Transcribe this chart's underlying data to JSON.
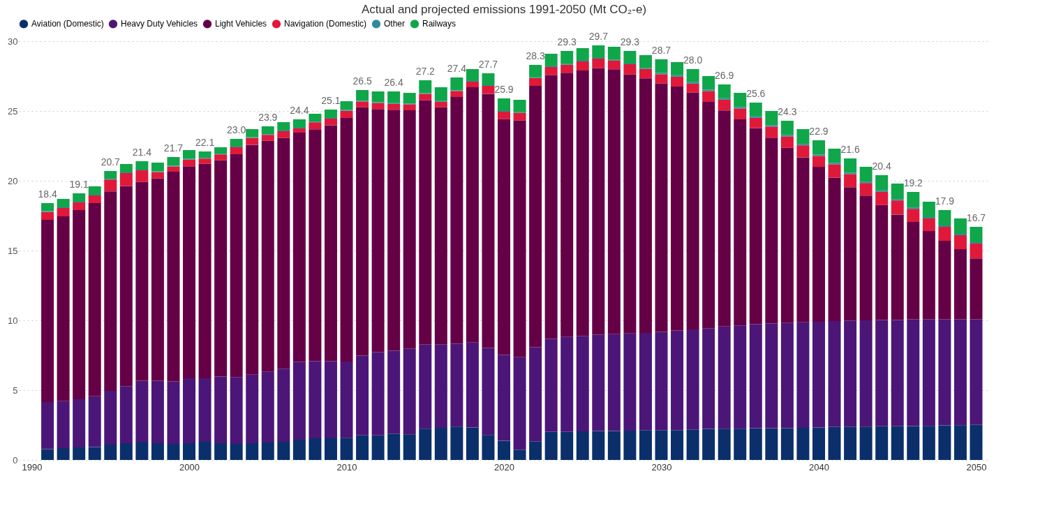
{
  "chart_data": {
    "type": "bar",
    "stacked": true,
    "title": "Actual and projected emissions 1991-2050 (Mt CO₂-e)",
    "x": [
      1991,
      1992,
      1993,
      1994,
      1995,
      1996,
      1997,
      1998,
      1999,
      2000,
      2001,
      2002,
      2003,
      2004,
      2005,
      2006,
      2007,
      2008,
      2009,
      2010,
      2011,
      2012,
      2013,
      2014,
      2015,
      2016,
      2017,
      2018,
      2019,
      2020,
      2021,
      2022,
      2023,
      2024,
      2025,
      2026,
      2027,
      2028,
      2029,
      2030,
      2031,
      2032,
      2033,
      2034,
      2035,
      2036,
      2037,
      2038,
      2039,
      2040,
      2041,
      2042,
      2043,
      2044,
      2045,
      2046,
      2047,
      2048,
      2049,
      2050
    ],
    "series": [
      {
        "name": "Aviation (Domestic)",
        "color": "#0b2f6b",
        "values": [
          0.77,
          0.85,
          0.9,
          0.92,
          1.1,
          1.2,
          1.3,
          1.2,
          1.15,
          1.2,
          1.3,
          1.2,
          1.15,
          1.2,
          1.25,
          1.3,
          1.45,
          1.55,
          1.55,
          1.59,
          1.76,
          1.76,
          1.88,
          1.84,
          2.24,
          2.3,
          2.39,
          2.32,
          1.79,
          1.37,
          0.73,
          1.33,
          2.01,
          2.01,
          2.05,
          2.07,
          2.07,
          2.1,
          2.13,
          2.13,
          2.13,
          2.18,
          2.22,
          2.24,
          2.24,
          2.27,
          2.27,
          2.27,
          2.3,
          2.32,
          2.36,
          2.36,
          2.39,
          2.41,
          2.41,
          2.42,
          2.44,
          2.47,
          2.49,
          2.53
        ]
      },
      {
        "name": "Heavy Duty Vehicles",
        "color": "#4b1678",
        "values": [
          3.38,
          3.36,
          3.45,
          3.64,
          3.85,
          4.09,
          4.37,
          4.47,
          4.48,
          4.65,
          4.55,
          4.77,
          4.79,
          4.91,
          5.06,
          5.24,
          5.58,
          5.53,
          5.53,
          5.46,
          5.71,
          5.97,
          5.94,
          6.15,
          6.05,
          5.99,
          5.94,
          6.09,
          6.23,
          6.16,
          6.63,
          6.74,
          6.66,
          6.8,
          6.84,
          6.91,
          6.94,
          6.96,
          6.97,
          7.05,
          7.14,
          7.17,
          7.22,
          7.32,
          7.4,
          7.46,
          7.51,
          7.54,
          7.56,
          7.58,
          7.59,
          7.62,
          7.61,
          7.62,
          7.62,
          7.65,
          7.63,
          7.61,
          7.59,
          7.55
        ]
      },
      {
        "name": "Light Vehicles",
        "color": "#650047",
        "values": [
          13.05,
          13.24,
          13.55,
          13.84,
          14.29,
          14.34,
          14.25,
          14.5,
          15.02,
          15.19,
          15.36,
          15.5,
          15.96,
          16.47,
          16.56,
          16.53,
          16.42,
          16.61,
          16.9,
          17.45,
          17.79,
          17.41,
          17.27,
          17.06,
          17.48,
          16.97,
          17.67,
          18.29,
          18.21,
          16.88,
          16.96,
          18.73,
          18.89,
          18.93,
          19.01,
          19.09,
          18.98,
          18.55,
          18.24,
          17.79,
          17.48,
          16.97,
          16.21,
          15.48,
          14.76,
          14.05,
          13.31,
          12.55,
          11.82,
          11.1,
          10.28,
          9.56,
          8.94,
          8.23,
          7.55,
          6.98,
          6.33,
          5.62,
          5.02,
          4.36
        ]
      },
      {
        "name": "Navigation (Domestic)",
        "color": "#e0193a",
        "values": [
          0.57,
          0.6,
          0.55,
          0.55,
          0.85,
          0.92,
          0.83,
          0.45,
          0.37,
          0.48,
          0.38,
          0.42,
          0.5,
          0.49,
          0.42,
          0.48,
          0.3,
          0.5,
          0.47,
          0.52,
          0.42,
          0.44,
          0.42,
          0.43,
          0.46,
          0.4,
          0.43,
          0.4,
          0.57,
          0.54,
          0.54,
          0.56,
          0.59,
          0.57,
          0.65,
          0.68,
          0.62,
          0.74,
          0.67,
          0.66,
          0.71,
          0.64,
          0.78,
          0.77,
          0.78,
          0.73,
          0.79,
          0.82,
          0.86,
          0.78,
          0.95,
          0.94,
          0.9,
          0.95,
          1.01,
          0.94,
          0.9,
          1.0,
          1.0,
          1.06
        ]
      },
      {
        "name": "Other",
        "color": "#2e8b9a",
        "values": [
          0.05,
          0.05,
          0.05,
          0.05,
          0.05,
          0.05,
          0.05,
          0.05,
          0.05,
          0.05,
          0.05,
          0.05,
          0.05,
          0.05,
          0.05,
          0.05,
          0.05,
          0.05,
          0.05,
          0.05,
          0.05,
          0.05,
          0.05,
          0.05,
          0.05,
          0.05,
          0.05,
          0.05,
          0.05,
          0.05,
          0.05,
          0.05,
          0.05,
          0.05,
          0.05,
          0.05,
          0.05,
          0.05,
          0.05,
          0.1,
          0.1,
          0.1,
          0.1,
          0.1,
          0.1,
          0.1,
          0.1,
          0.1,
          0.1,
          0.1,
          0.1,
          0.1,
          0.1,
          0.1,
          0.1,
          0.1,
          0.1,
          0.1,
          0.1,
          0.1
        ]
      },
      {
        "name": "Railways",
        "color": "#10a64a",
        "values": [
          0.58,
          0.6,
          0.6,
          0.6,
          0.56,
          0.6,
          0.6,
          0.63,
          0.63,
          0.63,
          0.46,
          0.46,
          0.55,
          0.58,
          0.56,
          0.6,
          0.6,
          0.56,
          0.6,
          0.63,
          0.77,
          0.77,
          0.84,
          0.77,
          0.92,
          0.99,
          0.92,
          0.85,
          0.85,
          0.9,
          0.89,
          0.89,
          0.9,
          0.94,
          0.9,
          0.9,
          0.94,
          0.9,
          0.94,
          0.97,
          0.94,
          0.94,
          0.97,
          0.99,
          1.02,
          0.99,
          1.02,
          1.02,
          1.06,
          1.02,
          1.02,
          1.02,
          1.06,
          1.09,
          1.11,
          1.11,
          1.1,
          1.1,
          1.1,
          1.1
        ]
      }
    ],
    "totals": [
      "18.4",
      null,
      "19.1",
      null,
      "20.7",
      null,
      "21.4",
      null,
      "21.7",
      null,
      "22.1",
      null,
      "23.0",
      null,
      "23.9",
      null,
      "24.4",
      null,
      "25.1",
      null,
      "26.5",
      null,
      "26.4",
      null,
      "27.2",
      null,
      "27.4",
      null,
      "27.7",
      "25.9",
      null,
      "28.3",
      null,
      "29.3",
      null,
      "29.7",
      null,
      "29.3",
      null,
      "28.7",
      null,
      "28.0",
      null,
      "26.9",
      null,
      "25.6",
      null,
      "24.3",
      null,
      "22.9",
      null,
      "21.6",
      null,
      "20.4",
      null,
      "19.2",
      null,
      "17.9",
      null,
      "16.7"
    ],
    "xlim": [
      1989.4,
      2050.6
    ],
    "xticks": [
      1990,
      2000,
      2010,
      2020,
      2030,
      2040,
      2050
    ],
    "ylim": [
      0,
      30
    ],
    "yticks": [
      0,
      5,
      10,
      15,
      20,
      25,
      30
    ],
    "grid": "y",
    "legend": "top left"
  }
}
